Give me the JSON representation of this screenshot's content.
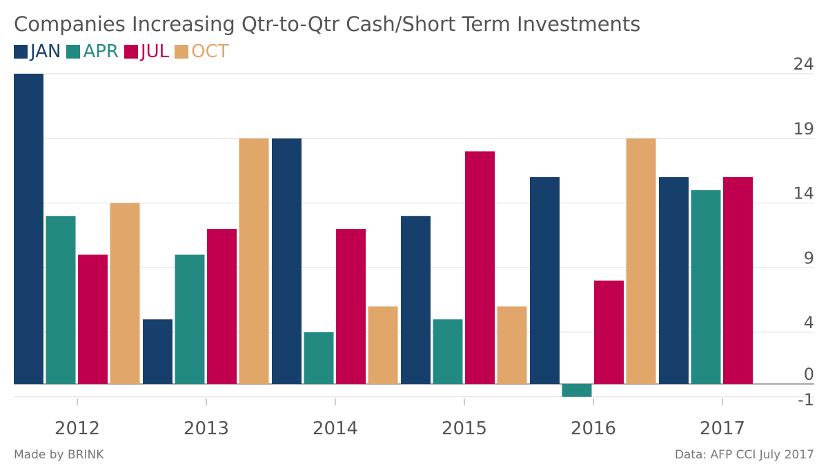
{
  "title": "Companies Increasing Qtr-to-Qtr Cash/Short Term Investments",
  "footer": {
    "credit": "Made by BRINK",
    "source": "Data: AFP CCI July 2017"
  },
  "chart_data": {
    "type": "bar",
    "title": "Companies Increasing Qtr-to-Qtr Cash/Short Term Investments",
    "categories": [
      "2012",
      "2013",
      "2014",
      "2015",
      "2016",
      "2017"
    ],
    "series": [
      {
        "name": "JAN",
        "color": "#16406b",
        "values": [
          24,
          5,
          19,
          13,
          16,
          16
        ]
      },
      {
        "name": "APR",
        "color": "#238a82",
        "values": [
          13,
          10,
          4,
          5,
          -1,
          15
        ]
      },
      {
        "name": "JUL",
        "color": "#c0004f",
        "values": [
          10,
          12,
          12,
          18,
          8,
          16
        ]
      },
      {
        "name": "OCT",
        "color": "#e0a66a",
        "values": [
          14,
          19,
          6,
          6,
          19,
          null
        ]
      }
    ],
    "yticks": [
      24,
      19,
      14,
      9,
      4,
      0,
      -1
    ],
    "ylim": [
      -1,
      24
    ],
    "grid": true,
    "y_axis_position": "right",
    "legend_position": "top-left"
  }
}
